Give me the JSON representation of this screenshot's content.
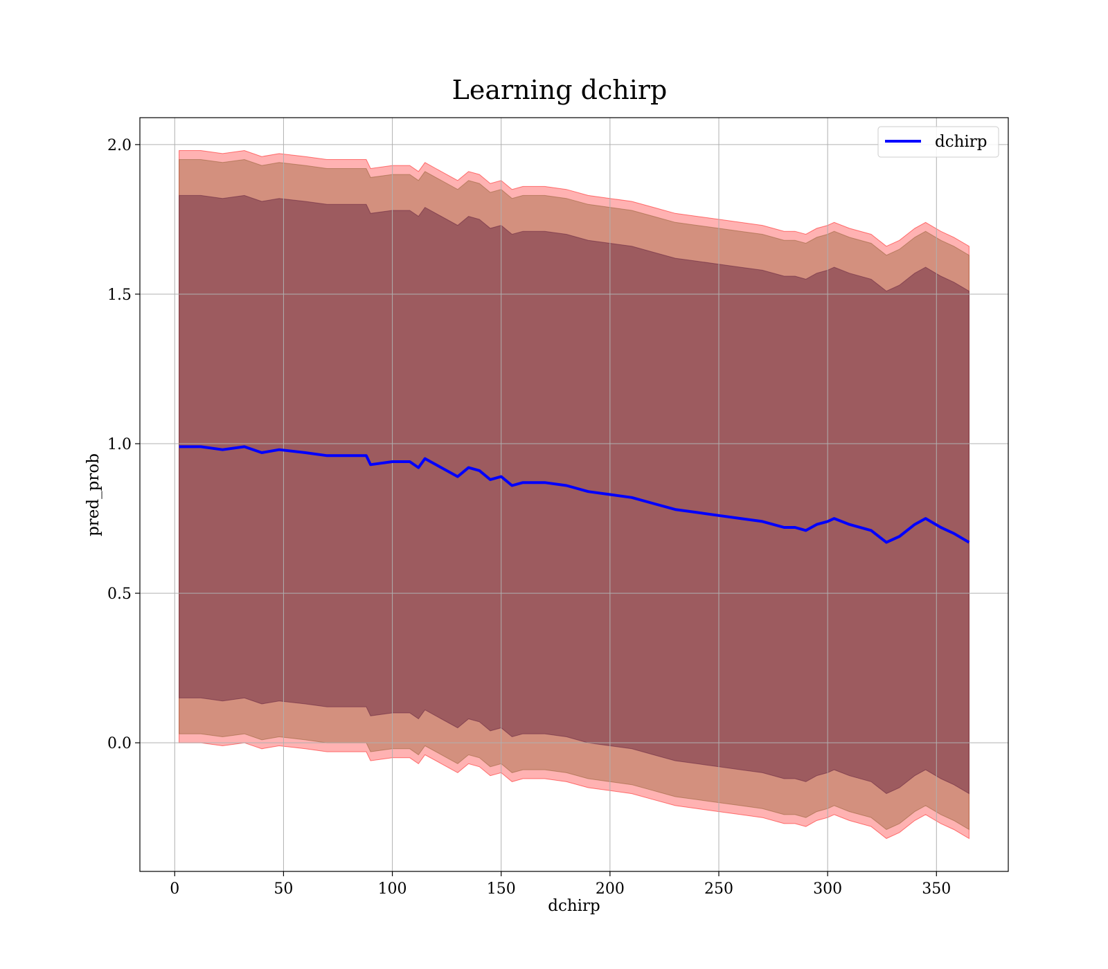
{
  "chart_data": {
    "type": "line",
    "title": "Learning dchirp",
    "xlabel": "dchirp",
    "ylabel": "pred_prob",
    "xlim": [
      -16,
      383
    ],
    "ylim": [
      -0.43,
      2.09
    ],
    "xticks": [
      0,
      50,
      100,
      150,
      200,
      250,
      300,
      350
    ],
    "xtick_labels": [
      "0",
      "50",
      "100",
      "150",
      "200",
      "250",
      "300",
      "350"
    ],
    "yticks": [
      0.0,
      0.5,
      1.0,
      1.5,
      2.0
    ],
    "ytick_labels": [
      "0.0",
      "0.5",
      "1.0",
      "1.5",
      "2.0"
    ],
    "grid": true,
    "legend_position": "upper right",
    "colors": {
      "line": "#0000ff",
      "band_outer": "#ff0000",
      "band_middle": "#8b5a2b",
      "band_inner": "#5b1a3a",
      "grid": "#b0b0b0"
    },
    "series": [
      {
        "name": "dchirp",
        "x": [
          2,
          12,
          22,
          32,
          40,
          48,
          60,
          70,
          80,
          88,
          90,
          100,
          108,
          112,
          115,
          120,
          130,
          135,
          140,
          145,
          150,
          155,
          160,
          170,
          180,
          190,
          200,
          210,
          220,
          230,
          240,
          250,
          260,
          270,
          280,
          285,
          290,
          295,
          300,
          303,
          310,
          320,
          327,
          333,
          340,
          345,
          352,
          358,
          365
        ],
        "values": [
          0.99,
          0.99,
          0.98,
          0.99,
          0.97,
          0.98,
          0.97,
          0.96,
          0.96,
          0.96,
          0.93,
          0.94,
          0.94,
          0.92,
          0.95,
          0.93,
          0.89,
          0.92,
          0.91,
          0.88,
          0.89,
          0.86,
          0.87,
          0.87,
          0.86,
          0.84,
          0.83,
          0.82,
          0.8,
          0.78,
          0.77,
          0.76,
          0.75,
          0.74,
          0.72,
          0.72,
          0.71,
          0.73,
          0.74,
          0.75,
          0.73,
          0.71,
          0.67,
          0.69,
          0.73,
          0.75,
          0.72,
          0.7,
          0.67
        ]
      }
    ],
    "bands": [
      {
        "x": [
          2,
          12,
          22,
          32,
          40,
          48,
          60,
          70,
          80,
          88,
          90,
          100,
          108,
          112,
          115,
          120,
          130,
          135,
          140,
          145,
          150,
          155,
          160,
          170,
          180,
          190,
          200,
          210,
          220,
          230,
          240,
          250,
          260,
          270,
          280,
          285,
          290,
          295,
          300,
          303,
          310,
          320,
          327,
          333,
          340,
          345,
          352,
          358,
          365
        ],
        "upper": [
          1.98,
          1.98,
          1.97,
          1.98,
          1.96,
          1.97,
          1.96,
          1.95,
          1.95,
          1.95,
          1.92,
          1.93,
          1.93,
          1.91,
          1.94,
          1.92,
          1.88,
          1.91,
          1.9,
          1.87,
          1.88,
          1.85,
          1.86,
          1.86,
          1.85,
          1.83,
          1.82,
          1.81,
          1.79,
          1.77,
          1.76,
          1.75,
          1.74,
          1.73,
          1.71,
          1.71,
          1.7,
          1.72,
          1.73,
          1.74,
          1.72,
          1.7,
          1.66,
          1.68,
          1.72,
          1.74,
          1.71,
          1.69,
          1.66
        ],
        "lower": [
          0.0,
          0.0,
          -0.01,
          0.0,
          -0.02,
          -0.01,
          -0.02,
          -0.03,
          -0.03,
          -0.03,
          -0.06,
          -0.05,
          -0.05,
          -0.07,
          -0.04,
          -0.06,
          -0.1,
          -0.07,
          -0.08,
          -0.11,
          -0.1,
          -0.13,
          -0.12,
          -0.12,
          -0.13,
          -0.15,
          -0.16,
          -0.17,
          -0.19,
          -0.21,
          -0.22,
          -0.23,
          -0.24,
          -0.25,
          -0.27,
          -0.27,
          -0.28,
          -0.26,
          -0.25,
          -0.24,
          -0.26,
          -0.28,
          -0.32,
          -0.3,
          -0.26,
          -0.24,
          -0.27,
          -0.29,
          -0.32
        ]
      },
      {
        "x": [
          2,
          12,
          22,
          32,
          40,
          48,
          60,
          70,
          80,
          88,
          90,
          100,
          108,
          112,
          115,
          120,
          130,
          135,
          140,
          145,
          150,
          155,
          160,
          170,
          180,
          190,
          200,
          210,
          220,
          230,
          240,
          250,
          260,
          270,
          280,
          285,
          290,
          295,
          300,
          303,
          310,
          320,
          327,
          333,
          340,
          345,
          352,
          358,
          365
        ],
        "upper": [
          1.95,
          1.95,
          1.94,
          1.95,
          1.93,
          1.94,
          1.93,
          1.92,
          1.92,
          1.92,
          1.89,
          1.9,
          1.9,
          1.88,
          1.91,
          1.89,
          1.85,
          1.88,
          1.87,
          1.84,
          1.85,
          1.82,
          1.83,
          1.83,
          1.82,
          1.8,
          1.79,
          1.78,
          1.76,
          1.74,
          1.73,
          1.72,
          1.71,
          1.7,
          1.68,
          1.68,
          1.67,
          1.69,
          1.7,
          1.71,
          1.69,
          1.67,
          1.63,
          1.65,
          1.69,
          1.71,
          1.68,
          1.66,
          1.63
        ],
        "lower": [
          0.03,
          0.03,
          0.02,
          0.03,
          0.01,
          0.02,
          0.01,
          0.0,
          0.0,
          0.0,
          -0.03,
          -0.02,
          -0.02,
          -0.04,
          -0.01,
          -0.03,
          -0.07,
          -0.04,
          -0.05,
          -0.08,
          -0.07,
          -0.1,
          -0.09,
          -0.09,
          -0.1,
          -0.12,
          -0.13,
          -0.14,
          -0.16,
          -0.18,
          -0.19,
          -0.2,
          -0.21,
          -0.22,
          -0.24,
          -0.24,
          -0.25,
          -0.23,
          -0.22,
          -0.21,
          -0.23,
          -0.25,
          -0.29,
          -0.27,
          -0.23,
          -0.21,
          -0.24,
          -0.26,
          -0.29
        ]
      },
      {
        "x": [
          2,
          12,
          22,
          32,
          40,
          48,
          60,
          70,
          80,
          88,
          90,
          100,
          108,
          112,
          115,
          120,
          130,
          135,
          140,
          145,
          150,
          155,
          160,
          170,
          180,
          190,
          200,
          210,
          220,
          230,
          240,
          250,
          260,
          270,
          280,
          285,
          290,
          295,
          300,
          303,
          310,
          320,
          327,
          333,
          340,
          345,
          352,
          358,
          365
        ],
        "upper": [
          1.83,
          1.83,
          1.82,
          1.83,
          1.81,
          1.82,
          1.81,
          1.8,
          1.8,
          1.8,
          1.77,
          1.78,
          1.78,
          1.76,
          1.79,
          1.77,
          1.73,
          1.76,
          1.75,
          1.72,
          1.73,
          1.7,
          1.71,
          1.71,
          1.7,
          1.68,
          1.67,
          1.66,
          1.64,
          1.62,
          1.61,
          1.6,
          1.59,
          1.58,
          1.56,
          1.56,
          1.55,
          1.57,
          1.58,
          1.59,
          1.57,
          1.55,
          1.51,
          1.53,
          1.57,
          1.59,
          1.56,
          1.54,
          1.51
        ],
        "lower": [
          0.15,
          0.15,
          0.14,
          0.15,
          0.13,
          0.14,
          0.13,
          0.12,
          0.12,
          0.12,
          0.09,
          0.1,
          0.1,
          0.08,
          0.11,
          0.09,
          0.05,
          0.08,
          0.07,
          0.04,
          0.05,
          0.02,
          0.03,
          0.03,
          0.02,
          0.0,
          -0.01,
          -0.02,
          -0.04,
          -0.06,
          -0.07,
          -0.08,
          -0.09,
          -0.1,
          -0.12,
          -0.12,
          -0.13,
          -0.11,
          -0.1,
          -0.09,
          -0.11,
          -0.13,
          -0.17,
          -0.15,
          -0.11,
          -0.09,
          -0.12,
          -0.14,
          -0.17
        ]
      }
    ]
  }
}
